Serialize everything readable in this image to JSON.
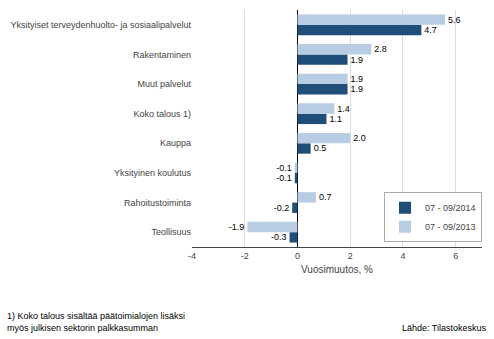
{
  "chart_data": {
    "type": "bar",
    "orientation": "horizontal",
    "categories": [
      "Yksityiset terveydenhuolto- ja sosiaalipalvelut",
      "Rakentaminen",
      "Muut palvelut",
      "Koko talous 1)",
      "Kauppa",
      "Yksityinen koulutus",
      "Rahoitustoiminta",
      "Teollisuus"
    ],
    "series": [
      {
        "name": "07 - 09/2014",
        "color": "#1F4E79",
        "values": [
          4.7,
          1.9,
          1.9,
          1.1,
          0.5,
          -0.1,
          -0.2,
          -0.3
        ],
        "value_labels": [
          "4.7",
          "1.9",
          "1.9",
          "1.1",
          "0.5",
          "-0.1",
          "-0.2",
          "-0.3"
        ]
      },
      {
        "name": "07 - 09/2013",
        "color": "#B8CCE4",
        "values": [
          5.6,
          2.8,
          1.9,
          1.4,
          2.0,
          -0.1,
          0.7,
          -1.9
        ],
        "value_labels": [
          "5.6",
          "2.8",
          "1.9",
          "1.4",
          "2.0",
          "-0.1",
          "0.7",
          "-1.9"
        ]
      }
    ],
    "xlabel": "Vuosimuutos, %",
    "xlim": [
      -4,
      7
    ],
    "xticks": [
      -4,
      -2,
      0,
      2,
      4,
      6
    ],
    "grid": true,
    "data_labels": true,
    "legend": "lower right",
    "annotations": [
      "1) Koko talous sisältää päätoimialojen lisäksi\nmyös julkisen sektorin palkkasumman",
      "Lähde: Tilastokeskus"
    ]
  }
}
